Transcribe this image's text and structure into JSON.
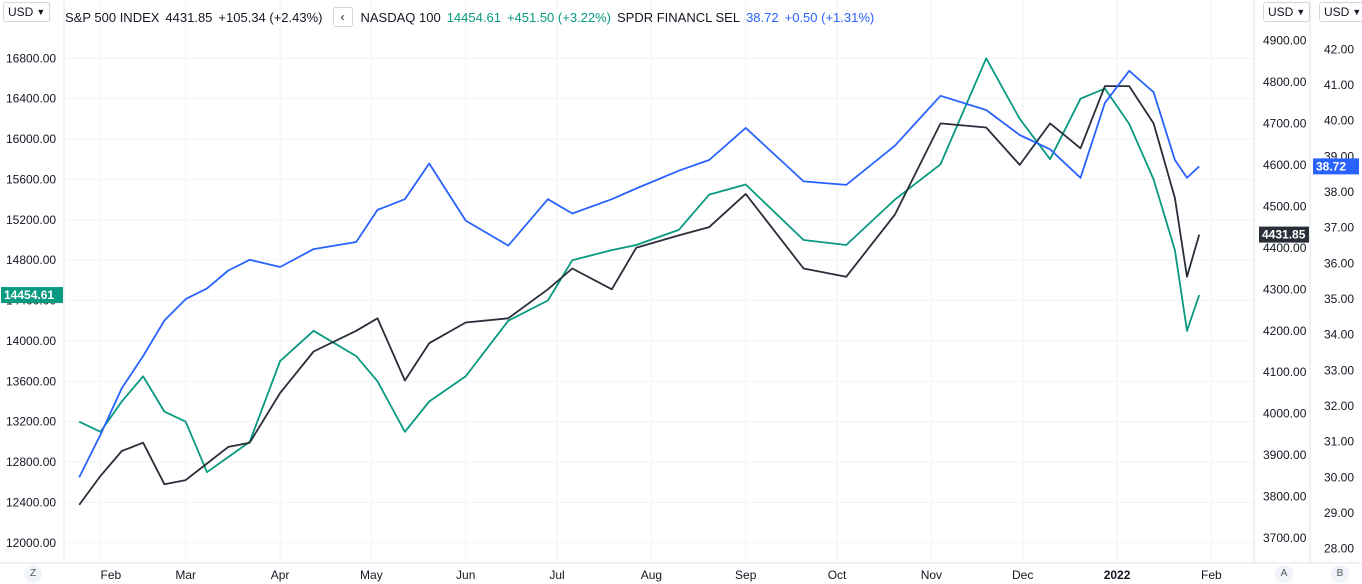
{
  "legend": {
    "sp500": {
      "name": "S&P 500 INDEX",
      "value": "4431.85",
      "change": "+105.34 (+2.43%)",
      "color": "#131722"
    },
    "nasdaq": {
      "name": "NASDAQ 100",
      "value": "14454.61",
      "change": "+451.50 (+3.22%)",
      "color": "#089981"
    },
    "xlf": {
      "name": "SPDR FINANCL SEL",
      "value": "38.72",
      "change": "+0.50 (+1.31%)",
      "color": "#2962ff"
    },
    "collapse_icon": "chevron-left-icon"
  },
  "currency_buttons": {
    "left": "USD",
    "right1": "USD",
    "right2": "USD"
  },
  "bottom_buttons": {
    "left": "Z",
    "right1": "A",
    "right2": "B"
  },
  "price_tags": {
    "nasdaq": {
      "text": "14454.61",
      "color": "#089981"
    },
    "sp500": {
      "text": "4431.85",
      "color": "#2a2e39"
    },
    "xlf": {
      "text": "38.72",
      "color": "#2962ff"
    }
  },
  "chart_data": {
    "type": "line",
    "x_tick_labels": [
      "Feb",
      "Mar",
      "Apr",
      "May",
      "Jun",
      "Jul",
      "Aug",
      "Sep",
      "Oct",
      "Nov",
      "Dec",
      "2022",
      "Feb"
    ],
    "axes": {
      "left": {
        "ticks": [
          "16800.00",
          "16400.00",
          "16000.00",
          "15600.00",
          "15200.00",
          "14800.00",
          "14400.00",
          "14000.00",
          "13600.00",
          "13200.00",
          "12800.00",
          "12400.00",
          "12000.00"
        ],
        "range": [
          11800,
          17100
        ]
      },
      "right1": {
        "ticks": [
          "4900.00",
          "4800.00",
          "4700.00",
          "4600.00",
          "4500.00",
          "4400.00",
          "4300.00",
          "4200.00",
          "4100.00",
          "4000.00",
          "3900.00",
          "3800.00",
          "3700.00"
        ],
        "range": [
          3640,
          4930
        ]
      },
      "right2": {
        "ticks": [
          "42.00",
          "41.00",
          "40.00",
          "39.00",
          "38.00",
          "37.00",
          "36.00",
          "35.00",
          "34.00",
          "33.00",
          "32.00",
          "31.00",
          "30.00",
          "29.00",
          "28.00"
        ],
        "range": [
          27.6,
          42.6
        ]
      }
    },
    "grid": true,
    "series": [
      {
        "name": "NASDAQ 100",
        "axis": "left",
        "color": "#089981",
        "x": [
          "2021-01-25",
          "2021-02-01",
          "2021-02-08",
          "2021-02-15",
          "2021-02-22",
          "2021-03-01",
          "2021-03-08",
          "2021-03-15",
          "2021-03-22",
          "2021-04-01",
          "2021-04-12",
          "2021-04-26",
          "2021-05-03",
          "2021-05-12",
          "2021-05-20",
          "2021-06-01",
          "2021-06-15",
          "2021-06-28",
          "2021-07-06",
          "2021-07-19",
          "2021-07-27",
          "2021-08-10",
          "2021-08-20",
          "2021-09-01",
          "2021-09-20",
          "2021-10-04",
          "2021-10-20",
          "2021-11-04",
          "2021-11-19",
          "2021-11-30",
          "2021-12-10",
          "2021-12-20",
          "2021-12-28",
          "2022-01-05",
          "2022-01-13",
          "2022-01-20",
          "2022-01-24",
          "2022-01-28"
        ],
        "y": [
          13200,
          13100,
          13400,
          13650,
          13300,
          13200,
          12700,
          12850,
          13000,
          13800,
          14100,
          13850,
          13600,
          13100,
          13400,
          13650,
          14200,
          14400,
          14800,
          14900,
          14950,
          15100,
          15450,
          15550,
          15000,
          14950,
          15400,
          15750,
          16800,
          16200,
          15800,
          16400,
          16500,
          16150,
          15600,
          14900,
          14100,
          14454.61
        ]
      },
      {
        "name": "S&P 500 INDEX",
        "axis": "right1",
        "color": "#2a2e39",
        "x": [
          "2021-01-25",
          "2021-02-01",
          "2021-02-08",
          "2021-02-15",
          "2021-02-22",
          "2021-03-01",
          "2021-03-08",
          "2021-03-15",
          "2021-03-22",
          "2021-04-01",
          "2021-04-12",
          "2021-04-26",
          "2021-05-03",
          "2021-05-12",
          "2021-05-20",
          "2021-06-01",
          "2021-06-15",
          "2021-06-28",
          "2021-07-06",
          "2021-07-19",
          "2021-07-27",
          "2021-08-10",
          "2021-08-20",
          "2021-09-01",
          "2021-09-20",
          "2021-10-04",
          "2021-10-20",
          "2021-11-04",
          "2021-11-19",
          "2021-11-30",
          "2021-12-10",
          "2021-12-20",
          "2021-12-28",
          "2022-01-05",
          "2022-01-13",
          "2022-01-20",
          "2022-01-24",
          "2022-01-28"
        ],
        "y": [
          3780,
          3850,
          3910,
          3930,
          3830,
          3840,
          3880,
          3920,
          3930,
          4050,
          4150,
          4200,
          4230,
          4080,
          4170,
          4220,
          4230,
          4300,
          4350,
          4300,
          4400,
          4430,
          4450,
          4530,
          4350,
          4330,
          4480,
          4700,
          4690,
          4600,
          4700,
          4640,
          4790,
          4790,
          4700,
          4520,
          4330,
          4431.85
        ]
      },
      {
        "name": "SPDR FINANCL SEL",
        "axis": "right2",
        "color": "#2962ff",
        "x": [
          "2021-01-25",
          "2021-02-01",
          "2021-02-08",
          "2021-02-15",
          "2021-02-22",
          "2021-03-01",
          "2021-03-08",
          "2021-03-15",
          "2021-03-22",
          "2021-04-01",
          "2021-04-12",
          "2021-04-26",
          "2021-05-03",
          "2021-05-12",
          "2021-05-20",
          "2021-06-01",
          "2021-06-15",
          "2021-06-28",
          "2021-07-06",
          "2021-07-19",
          "2021-07-27",
          "2021-08-10",
          "2021-08-20",
          "2021-09-01",
          "2021-09-20",
          "2021-10-04",
          "2021-10-20",
          "2021-11-04",
          "2021-11-19",
          "2021-11-30",
          "2021-12-10",
          "2021-12-20",
          "2021-12-28",
          "2022-01-05",
          "2022-01-13",
          "2022-01-20",
          "2022-01-24",
          "2022-01-28"
        ],
        "y": [
          30.0,
          31.2,
          32.5,
          33.4,
          34.4,
          35.0,
          35.3,
          35.8,
          36.1,
          35.9,
          36.4,
          36.6,
          37.5,
          37.8,
          38.8,
          37.2,
          36.5,
          37.8,
          37.4,
          37.8,
          38.1,
          38.6,
          38.9,
          39.8,
          38.3,
          38.2,
          39.3,
          40.7,
          40.3,
          39.6,
          39.2,
          38.4,
          40.5,
          41.4,
          40.8,
          38.9,
          38.4,
          38.72
        ]
      }
    ]
  }
}
